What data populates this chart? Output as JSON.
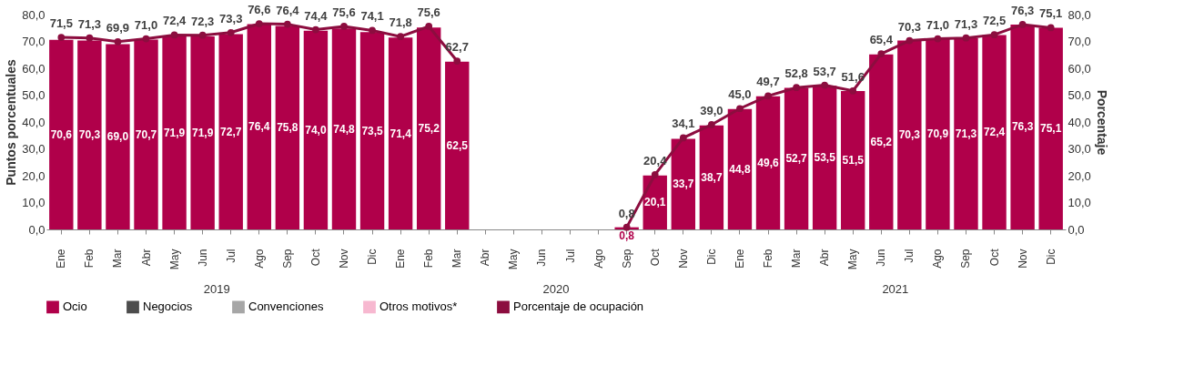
{
  "chart_data": {
    "type": "bar",
    "categories": [
      "Ene",
      "Feb",
      "Mar",
      "Abr",
      "May",
      "Jun",
      "Jul",
      "Ago",
      "Sep",
      "Oct",
      "Nov",
      "Dic",
      "Ene",
      "Feb",
      "Mar",
      "Abr",
      "May",
      "Jun",
      "Jul",
      "Ago",
      "Sep",
      "Oct",
      "Nov",
      "Dic",
      "Ene",
      "Feb",
      "Mar",
      "Abr",
      "May",
      "Jun",
      "Jul",
      "Ago",
      "Sep",
      "Oct",
      "Nov",
      "Dic"
    ],
    "series": [
      {
        "name": "Ocio",
        "color": "#b0004a",
        "values": [
          70.6,
          70.3,
          69.0,
          70.7,
          71.9,
          71.9,
          72.7,
          76.4,
          75.8,
          74.0,
          74.8,
          73.5,
          71.4,
          75.2,
          62.5,
          null,
          null,
          null,
          null,
          null,
          0.8,
          20.1,
          33.7,
          38.7,
          44.8,
          49.6,
          52.7,
          53.5,
          51.5,
          65.2,
          70.3,
          70.9,
          71.3,
          72.4,
          76.3,
          75.1
        ],
        "value_labels": [
          "70,6",
          "70,3",
          "69,0",
          "70,7",
          "71,9",
          "71,9",
          "72,7",
          "76,4",
          "75,8",
          "74,0",
          "74,8",
          "73,5",
          "71,4",
          "75,2",
          "62,5",
          null,
          null,
          null,
          null,
          null,
          "0,8",
          "20,1",
          "33,7",
          "38,7",
          "44,8",
          "49,6",
          "52,7",
          "53,5",
          "51,5",
          "65,2",
          "70,3",
          "70,9",
          "71,3",
          "72,4",
          "76,3",
          "75,1"
        ]
      },
      {
        "name": "Negocios",
        "color": "#4d4d4d",
        "values": [
          null,
          null,
          null,
          null,
          null,
          null,
          null,
          null,
          null,
          null,
          null,
          null,
          null,
          null,
          null,
          null,
          null,
          null,
          null,
          null,
          null,
          null,
          null,
          null,
          null,
          null,
          null,
          null,
          null,
          null,
          null,
          null,
          null,
          null,
          null,
          null
        ]
      },
      {
        "name": "Convenciones",
        "color": "#a6a6a6",
        "values": [
          null,
          null,
          null,
          null,
          null,
          null,
          null,
          null,
          null,
          null,
          null,
          null,
          null,
          null,
          null,
          null,
          null,
          null,
          null,
          null,
          null,
          null,
          null,
          null,
          null,
          null,
          null,
          null,
          null,
          null,
          null,
          null,
          null,
          null,
          null,
          null
        ]
      },
      {
        "name": "Otros motivos*",
        "color": "#f7b8d0",
        "values": [
          null,
          null,
          null,
          null,
          null,
          null,
          null,
          null,
          null,
          null,
          null,
          null,
          null,
          null,
          null,
          null,
          null,
          null,
          null,
          null,
          null,
          null,
          null,
          null,
          null,
          null,
          null,
          null,
          null,
          null,
          null,
          null,
          null,
          null,
          null,
          null
        ]
      },
      {
        "name": "Porcentaje de ocupación",
        "type": "line",
        "axis": "y2",
        "color": "#8c0d3f",
        "values": [
          71.5,
          71.3,
          69.9,
          71.0,
          72.4,
          72.3,
          73.3,
          76.6,
          76.4,
          74.4,
          75.6,
          74.1,
          71.8,
          75.6,
          62.7,
          null,
          null,
          null,
          null,
          null,
          0.8,
          20.4,
          34.1,
          39.0,
          45.0,
          49.7,
          52.8,
          53.7,
          51.6,
          65.4,
          70.3,
          71.0,
          71.3,
          72.5,
          76.3,
          75.1
        ],
        "value_labels": [
          "71,5",
          "71,3",
          "69,9",
          "71,0",
          "72,4",
          "72,3",
          "73,3",
          "76,6",
          "76,4",
          "74,4",
          "75,6",
          "74,1",
          "71,8",
          "75,6",
          "62,7",
          null,
          null,
          null,
          null,
          null,
          "0,8",
          "20,4",
          "34,1",
          "39,0",
          "45,0",
          "49,7",
          "52,8",
          "53,7",
          "51,6",
          "65,4",
          "70,3",
          "71,0",
          "71,3",
          "72,5",
          "76,3",
          "75,1"
        ]
      }
    ],
    "ylabel": "Puntos porcentuales",
    "y2label": "Porcentaje",
    "ylim": [
      0,
      80
    ],
    "yticks": [
      {
        "value": 0,
        "label": "0,0"
      },
      {
        "value": 10,
        "label": "10,0"
      },
      {
        "value": 20,
        "label": "20,0"
      },
      {
        "value": 30,
        "label": "30,0"
      },
      {
        "value": 40,
        "label": "40,0"
      },
      {
        "value": 50,
        "label": "50,0"
      },
      {
        "value": 60,
        "label": "60,0"
      },
      {
        "value": 70,
        "label": "70,0"
      },
      {
        "value": 80,
        "label": "80,0"
      }
    ],
    "y2lim": [
      0,
      80
    ],
    "y2ticks": [
      {
        "value": 0,
        "label": "0,0"
      },
      {
        "value": 10,
        "label": "10,0"
      },
      {
        "value": 20,
        "label": "20,0"
      },
      {
        "value": 30,
        "label": "30,0"
      },
      {
        "value": 40,
        "label": "40,0"
      },
      {
        "value": 50,
        "label": "50,0"
      },
      {
        "value": 60,
        "label": "60,0"
      },
      {
        "value": 70,
        "label": "70,0"
      },
      {
        "value": 80,
        "label": "80,0"
      }
    ],
    "annotations": [
      "2019",
      "2020",
      "2021"
    ],
    "legend": "bottom",
    "grid": false,
    "marker": "circle",
    "line_style": "solid"
  }
}
